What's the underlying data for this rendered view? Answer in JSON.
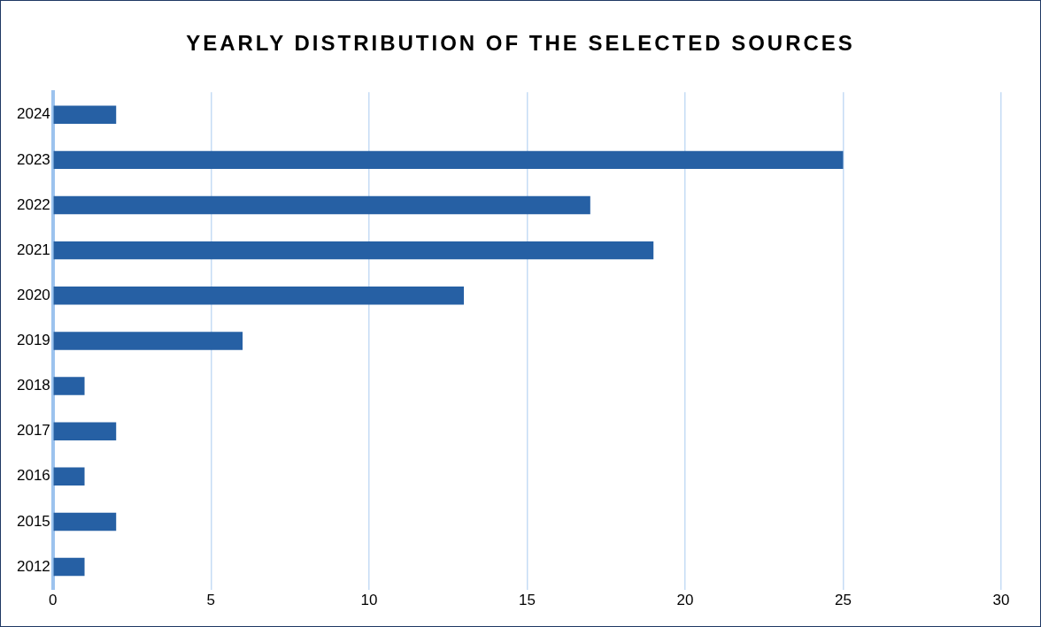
{
  "chart_data": {
    "type": "bar",
    "orientation": "horizontal",
    "title": "YEARLY DISTRIBUTION OF THE SELECTED SOURCES",
    "categories": [
      "2024",
      "2023",
      "2022",
      "2021",
      "2020",
      "2019",
      "2018",
      "2017",
      "2016",
      "2015",
      "2012"
    ],
    "values": [
      2,
      25,
      17,
      19,
      13,
      6,
      1,
      2,
      1,
      2,
      1
    ],
    "color": "#2660a4",
    "xlim": [
      0,
      30
    ],
    "xticks": [
      0,
      5,
      10,
      15,
      20,
      25,
      30
    ],
    "grid": "x"
  }
}
